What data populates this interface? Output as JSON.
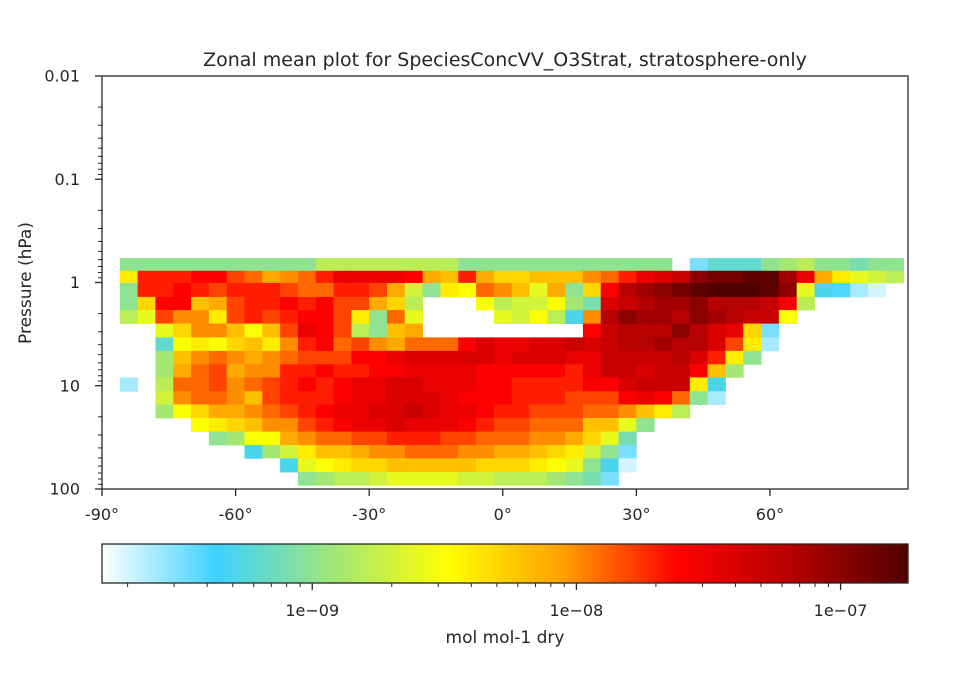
{
  "chart_data": {
    "type": "heatmap",
    "title": "Zonal mean plot for SpeciesConcVV_O3Strat, stratosphere-only",
    "ylabel": "Pressure (hPa)",
    "xlabel": "",
    "x_ticks": [
      {
        "value": -90,
        "label": "-90°"
      },
      {
        "value": -60,
        "label": "-60°"
      },
      {
        "value": -30,
        "label": "-30°"
      },
      {
        "value": 0,
        "label": "0°"
      },
      {
        "value": 30,
        "label": "30°"
      },
      {
        "value": 60,
        "label": "60°"
      }
    ],
    "y_ticks": [
      {
        "value": 0.01,
        "label": "0.01"
      },
      {
        "value": 0.1,
        "label": "0.1"
      },
      {
        "value": 1,
        "label": "1"
      },
      {
        "value": 10,
        "label": "10"
      },
      {
        "value": 100,
        "label": "100"
      }
    ],
    "xlim": [
      -90,
      91
    ],
    "ylim": [
      100,
      0.01
    ],
    "y_scale": "log",
    "y_inverted": true,
    "colorbar": {
      "label": "mol mol-1 dry",
      "scale": "log",
      "range": [
        1.6e-10,
        1.8e-07
      ],
      "ticks": [
        {
          "value": 1e-09,
          "label": "1e−09"
        },
        {
          "value": 1e-08,
          "label": "1e−08"
        },
        {
          "value": 1e-07,
          "label": "1e−07"
        }
      ],
      "colormap": [
        "#ffffff",
        "#3cd2ff",
        "#a0e67a",
        "#ffff00",
        "#ffa000",
        "#ff0000",
        "#b40000",
        "#500000"
      ]
    },
    "lat_edges": [
      -90,
      -86,
      -82,
      -78,
      -74,
      -70,
      -66,
      -62,
      -58,
      -54,
      -50,
      -46,
      -42,
      -38,
      -34,
      -30,
      -26,
      -22,
      -18,
      -14,
      -10,
      -6,
      -2,
      2,
      6,
      10,
      14,
      18,
      22,
      26,
      30,
      34,
      38,
      42,
      46,
      50,
      54,
      58,
      62,
      66,
      70,
      74,
      78,
      82,
      86,
      90
    ],
    "pressure_edges": [
      0.58,
      0.77,
      1.01,
      1.38,
      1.85,
      2.5,
      3.4,
      4.6,
      6.2,
      8.3,
      11.3,
      15.2,
      20.5,
      27.8,
      37.5,
      50.5,
      68.5,
      92
    ],
    "values_log10": [
      [
        null,
        -9.0,
        -9.0,
        -9.0,
        -9.0,
        -9.0,
        -9.0,
        -9.0,
        -9.0,
        -9.0,
        -9.0,
        -9.0,
        -8.8,
        -8.8,
        -8.8,
        -8.8,
        -8.8,
        -8.8,
        -8.8,
        -8.8,
        -9.0,
        -9.0,
        -9.0,
        -9.0,
        -9.0,
        -9.0,
        -9.0,
        -9.0,
        -9.0,
        -9.0,
        -9.0,
        -9.0,
        null,
        -9.5,
        -9.2,
        -9.2,
        -9.2,
        -9.0,
        -8.9,
        -8.8,
        -9.0,
        -9.0,
        -9.1,
        -9.0,
        -9.0
      ],
      [
        null,
        -8.4,
        -7.7,
        -7.7,
        -7.7,
        -7.6,
        -7.6,
        -7.8,
        -7.9,
        -8.1,
        -8.0,
        -7.9,
        -7.7,
        -7.5,
        -7.5,
        -7.5,
        -7.5,
        -7.6,
        -8.1,
        -8.2,
        -7.7,
        -8.1,
        -8.3,
        -8.3,
        -8.2,
        -8.2,
        -8.2,
        -8.0,
        -7.9,
        -7.7,
        -7.5,
        -7.4,
        -7.3,
        -7.0,
        -6.9,
        -6.9,
        -6.8,
        -6.8,
        -7.1,
        -7.5,
        -8.1,
        -8.4,
        -8.6,
        -8.7,
        -8.8
      ],
      [
        null,
        -9.0,
        -7.7,
        -7.7,
        -7.6,
        -7.7,
        -7.8,
        -7.7,
        -7.7,
        -7.7,
        -7.8,
        -7.9,
        -7.9,
        -7.7,
        -7.7,
        -7.8,
        -8.1,
        -8.7,
        -9.0,
        -8.4,
        -8.5,
        -7.9,
        -8.0,
        -8.2,
        -8.6,
        -8.1,
        -9.0,
        -8.3,
        -7.6,
        -7.2,
        -7.1,
        -7.0,
        -6.9,
        -6.8,
        -6.7,
        -6.7,
        -6.7,
        -6.8,
        -7.0,
        -8.6,
        -9.3,
        -9.4,
        -9.6,
        -9.7,
        null
      ],
      [
        null,
        -9.0,
        -8.3,
        -7.6,
        -7.6,
        -8.2,
        -8.1,
        -7.8,
        -7.7,
        -7.7,
        -7.6,
        -7.7,
        -7.6,
        -7.8,
        -7.8,
        -8.1,
        -8.3,
        -8.8,
        null,
        null,
        null,
        -8.5,
        -8.8,
        -8.7,
        -8.7,
        -8.5,
        -8.9,
        -9.1,
        -7.4,
        -7.3,
        -7.2,
        -7.1,
        -7.1,
        -7.0,
        -7.2,
        -7.2,
        -7.2,
        -7.3,
        -7.6,
        -8.8,
        null,
        null,
        null,
        null,
        null
      ],
      [
        null,
        -8.8,
        -8.6,
        -7.8,
        -8.0,
        -8.0,
        -8.4,
        -7.8,
        -7.7,
        -7.8,
        -7.7,
        -7.6,
        -7.6,
        -7.8,
        -8.4,
        -9.0,
        -7.9,
        -8.6,
        null,
        null,
        null,
        null,
        -8.6,
        -8.7,
        -8.5,
        -8.8,
        -9.3,
        -8.0,
        -7.2,
        -7.0,
        -7.1,
        -7.1,
        -7.2,
        -7.0,
        -7.1,
        -7.2,
        -7.3,
        -7.3,
        -8.5,
        null,
        null,
        null,
        null,
        null,
        null
      ],
      [
        null,
        null,
        null,
        -8.6,
        -8.3,
        -8.0,
        -8.0,
        -8.2,
        -8.5,
        -8.2,
        -7.8,
        -7.5,
        -7.6,
        -7.8,
        -8.8,
        -9.0,
        -8.2,
        -8.1,
        null,
        null,
        null,
        null,
        null,
        null,
        null,
        null,
        null,
        -7.6,
        -7.3,
        -7.2,
        -7.2,
        -7.2,
        -7.0,
        -7.2,
        -7.4,
        -7.5,
        -8.3,
        -9.5,
        null,
        null,
        null,
        null,
        null,
        null,
        null
      ],
      [
        null,
        null,
        null,
        -9.2,
        -8.5,
        -8.4,
        -8.5,
        -8.3,
        -8.2,
        -8.4,
        -8.0,
        -7.7,
        -7.6,
        -7.9,
        -7.8,
        -8.0,
        -8.1,
        -7.9,
        -7.9,
        -7.9,
        -7.6,
        -7.4,
        -7.5,
        -7.5,
        -7.4,
        -7.4,
        -7.3,
        -7.4,
        -7.3,
        -7.2,
        -7.2,
        -7.1,
        -7.2,
        -7.2,
        -7.4,
        -7.8,
        -8.4,
        -9.6,
        null,
        null,
        null,
        null,
        null,
        null,
        null
      ],
      [
        null,
        null,
        null,
        -8.9,
        -8.2,
        -8.0,
        -7.9,
        -8.0,
        -8.1,
        -8.0,
        -7.9,
        -7.8,
        -7.8,
        -7.8,
        -7.6,
        -7.6,
        -7.5,
        -7.4,
        -7.4,
        -7.4,
        -7.4,
        -7.4,
        -7.5,
        -7.4,
        -7.4,
        -7.4,
        -7.5,
        -7.5,
        -7.3,
        -7.3,
        -7.3,
        -7.3,
        -7.2,
        -7.4,
        -7.7,
        -8.4,
        -9.0,
        null,
        null,
        null,
        null,
        null,
        null,
        null,
        null
      ],
      [
        null,
        null,
        null,
        -8.9,
        -8.1,
        -7.9,
        -7.8,
        -8.1,
        -8.0,
        -8.0,
        -7.7,
        -7.7,
        -7.6,
        -7.7,
        -7.7,
        -7.6,
        -7.6,
        -7.5,
        -7.5,
        -7.5,
        -7.5,
        -7.6,
        -7.6,
        -7.6,
        -7.6,
        -7.6,
        -7.7,
        -7.5,
        -7.3,
        -7.3,
        -7.4,
        -7.3,
        -7.3,
        -7.6,
        -8.2,
        -8.9,
        null,
        null,
        null,
        null,
        null,
        null,
        null,
        null,
        null
      ],
      [
        null,
        -9.6,
        null,
        -8.8,
        -7.9,
        -7.9,
        -7.8,
        -8.0,
        -7.9,
        -7.8,
        -7.7,
        -7.6,
        -7.7,
        -7.6,
        -7.5,
        -7.5,
        -7.4,
        -7.4,
        -7.5,
        -7.5,
        -7.5,
        -7.6,
        -7.6,
        -7.7,
        -7.7,
        -7.7,
        -7.7,
        -7.6,
        -7.6,
        -7.4,
        -7.3,
        -7.3,
        -7.3,
        -8.4,
        -9.3,
        null,
        null,
        null,
        null,
        null,
        null,
        null,
        null,
        null,
        null
      ],
      [
        null,
        null,
        null,
        -8.7,
        -8.0,
        -7.9,
        -7.9,
        -8.0,
        -8.2,
        -7.8,
        -7.7,
        -7.7,
        -7.7,
        -7.6,
        -7.5,
        -7.5,
        -7.4,
        -7.4,
        -7.4,
        -7.5,
        -7.6,
        -7.6,
        -7.6,
        -7.7,
        -7.7,
        -7.7,
        -7.8,
        -7.8,
        -7.8,
        -7.6,
        -7.5,
        -7.6,
        -7.9,
        -9.0,
        -9.6,
        null,
        null,
        null,
        null,
        null,
        null,
        null,
        null,
        null,
        null
      ],
      [
        null,
        null,
        null,
        -8.9,
        -8.5,
        -8.3,
        -8.1,
        -8.1,
        -8.0,
        -7.9,
        -7.8,
        -7.7,
        -7.6,
        -7.5,
        -7.5,
        -7.4,
        -7.4,
        -7.3,
        -7.4,
        -7.5,
        -7.5,
        -7.6,
        -7.7,
        -7.7,
        -7.8,
        -7.8,
        -7.8,
        -7.9,
        -7.9,
        -8.0,
        -8.2,
        -8.4,
        -8.8,
        null,
        null,
        null,
        null,
        null,
        null,
        null,
        null,
        null,
        null,
        null,
        null
      ],
      [
        null,
        null,
        null,
        null,
        null,
        -8.5,
        -8.4,
        -8.3,
        -8.2,
        -8.0,
        -8.0,
        -7.8,
        -7.7,
        -7.6,
        -7.5,
        -7.5,
        -7.4,
        -7.5,
        -7.5,
        -7.5,
        -7.6,
        -7.7,
        -7.8,
        -7.8,
        -7.9,
        -7.9,
        -7.9,
        -8.2,
        -8.2,
        -8.6,
        -9.0,
        null,
        null,
        null,
        null,
        null,
        null,
        null,
        null,
        null,
        null,
        null,
        null,
        null,
        null
      ],
      [
        null,
        null,
        null,
        null,
        null,
        null,
        -9.0,
        -8.9,
        -8.5,
        -8.5,
        -8.1,
        -8.0,
        -7.9,
        -7.9,
        -7.8,
        -7.8,
        -7.7,
        -7.7,
        -7.7,
        -7.8,
        -7.8,
        -7.9,
        -7.9,
        -7.9,
        -8.0,
        -8.0,
        -8.1,
        -8.3,
        -8.6,
        -9.1,
        null,
        null,
        null,
        null,
        null,
        null,
        null,
        null,
        null,
        null,
        null,
        null,
        null,
        null,
        null
      ],
      [
        null,
        null,
        null,
        null,
        null,
        null,
        null,
        null,
        -9.3,
        -8.9,
        -8.7,
        -8.4,
        -8.2,
        -8.2,
        -8.1,
        -8.0,
        -8.0,
        -7.9,
        -7.9,
        -7.9,
        -8.0,
        -8.0,
        -8.1,
        -8.1,
        -8.2,
        -8.3,
        -8.4,
        -8.7,
        -9.0,
        -9.5,
        null,
        null,
        null,
        null,
        null,
        null,
        null,
        null,
        null,
        null,
        null,
        null,
        null,
        null,
        null
      ],
      [
        null,
        null,
        null,
        null,
        null,
        null,
        null,
        null,
        null,
        -9.8,
        -9.3,
        -8.6,
        -8.5,
        -8.4,
        -8.3,
        -8.3,
        -8.2,
        -8.2,
        -8.2,
        -8.2,
        -8.2,
        -8.3,
        -8.3,
        -8.3,
        -8.4,
        -8.5,
        -8.6,
        -9.0,
        -9.3,
        -9.7,
        null,
        null,
        null,
        null,
        null,
        null,
        null,
        null,
        null,
        null,
        null,
        null,
        null,
        null,
        null
      ],
      [
        null,
        null,
        null,
        null,
        null,
        null,
        null,
        null,
        null,
        null,
        null,
        -9.0,
        -8.9,
        -8.8,
        -8.8,
        -8.7,
        -8.6,
        -8.6,
        -8.6,
        -8.6,
        -8.7,
        -8.7,
        -8.8,
        -8.8,
        -8.8,
        -8.9,
        -9.0,
        -9.1,
        -9.5,
        null,
        null,
        null,
        null,
        null,
        null,
        null,
        null,
        null,
        null,
        null,
        null,
        null,
        null,
        null,
        null
      ],
      [
        null,
        null,
        null,
        null,
        null,
        null,
        null,
        null,
        null,
        null,
        null,
        -9.6,
        -9.5,
        -9.1,
        -9.1,
        -9.2,
        -9.1,
        -9.1,
        -9.1,
        -9.2,
        -9.2,
        -9.3,
        -9.4,
        -9.5,
        -9.5,
        -9.5,
        -9.6,
        -9.7,
        null,
        null,
        null,
        null,
        null,
        null,
        null,
        null,
        null,
        null,
        null,
        null,
        null,
        null,
        null,
        null,
        null
      ]
    ]
  }
}
